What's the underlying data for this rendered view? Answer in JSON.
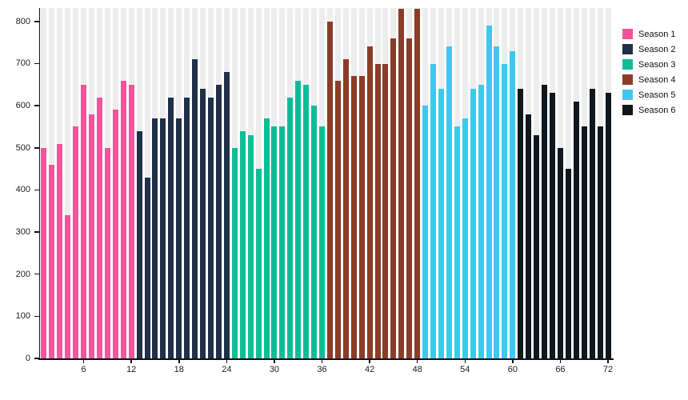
{
  "chart_data": {
    "type": "bar",
    "title": "",
    "xlabel": "",
    "ylabel": "",
    "x_ticks": [
      6,
      12,
      18,
      24,
      30,
      36,
      42,
      48,
      54,
      60,
      66,
      72
    ],
    "y_ticks": [
      0,
      100,
      200,
      300,
      400,
      500,
      600,
      700,
      800
    ],
    "ylim": [
      0,
      832
    ],
    "x_range": [
      1,
      72
    ],
    "episodes_per_season": 12,
    "grid": "vertical-background-bands",
    "legend_position": "top-right",
    "series": [
      {
        "name": "Season 1",
        "color": "#F0549B",
        "values": [
          500,
          460,
          510,
          340,
          550,
          650,
          580,
          620,
          500,
          590,
          660,
          650
        ]
      },
      {
        "name": "Season 2",
        "color": "#1F3148",
        "values": [
          540,
          430,
          570,
          570,
          620,
          570,
          620,
          710,
          640,
          620,
          650,
          680
        ]
      },
      {
        "name": "Season 3",
        "color": "#0CBE97",
        "values": [
          500,
          540,
          530,
          450,
          570,
          550,
          550,
          620,
          660,
          650,
          600,
          550
        ]
      },
      {
        "name": "Season 4",
        "color": "#8C3D27",
        "values": [
          800,
          660,
          710,
          670,
          670,
          740,
          700,
          700,
          760,
          830,
          760,
          830
        ]
      },
      {
        "name": "Season 5",
        "color": "#3EC8F1",
        "values": [
          600,
          700,
          640,
          740,
          550,
          570,
          640,
          650,
          790,
          740,
          700,
          730
        ]
      },
      {
        "name": "Season 6",
        "color": "#10171C",
        "values": [
          640,
          580,
          530,
          650,
          630,
          500,
          450,
          610,
          550,
          640,
          550,
          630
        ]
      }
    ]
  },
  "style": {
    "background": "#FFFFFF",
    "band_color": "#EDEDED",
    "axis_color": "#111111",
    "tick_label_color": "#222222"
  }
}
